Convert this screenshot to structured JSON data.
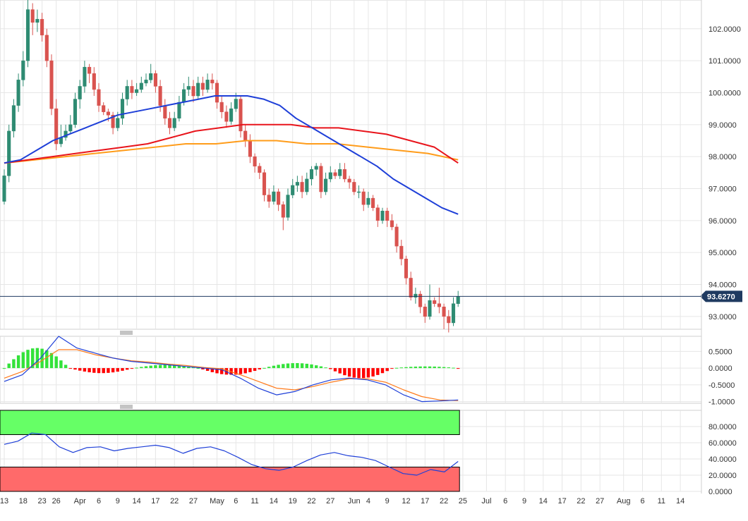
{
  "chart_data": {
    "type": "candlestick",
    "title": "",
    "colors": {
      "up": "#2e8b72",
      "down": "#d9534f",
      "sma_short": "#1e3fd8",
      "sma_mid": "#e8141b",
      "sma_long": "#ff9c1a",
      "macd_line": "#1e3fd8",
      "signal_line": "#ff7a1a",
      "hist_pos": "#33e23a",
      "hist_neg": "#ff0000",
      "rsi_line": "#1e3fd8",
      "overbought_zone": "#66ff66",
      "oversold_zone": "#ff6a6a",
      "price_tag": "#1f3a60",
      "grid": "#e6e6e6"
    },
    "x_axis": {
      "tick_labels": [
        "13",
        "18",
        "23",
        "26",
        "Apr",
        "6",
        "9",
        "14",
        "17",
        "22",
        "27",
        "May",
        "6",
        "11",
        "14",
        "19",
        "22",
        "27",
        "Jun",
        "4",
        "9",
        "12",
        "17",
        "22",
        "25",
        "Jul",
        "6",
        "9",
        "14",
        "17",
        "22",
        "27",
        "Aug",
        "6",
        "11",
        "14"
      ],
      "tick_index": [
        0,
        4,
        8,
        11,
        16,
        20,
        24,
        28,
        32,
        36,
        40,
        45,
        49,
        53,
        57,
        61,
        65,
        69,
        74,
        77,
        81,
        85,
        89,
        93,
        97,
        102,
        106,
        110,
        114,
        118,
        122,
        126,
        131,
        135,
        139,
        143
      ]
    },
    "price_panel": {
      "ylim": [
        92.6,
        102.9
      ],
      "y_ticks": [
        "93.0000",
        "94.0000",
        "95.0000",
        "96.0000",
        "97.0000",
        "98.0000",
        "99.0000",
        "100.0000",
        "101.0000",
        "102.0000"
      ],
      "y_tick_values": [
        93,
        94,
        95,
        96,
        97,
        98,
        99,
        100,
        101,
        102
      ],
      "last_price": 93.627,
      "last_price_label": "93.6270",
      "candles": [
        [
          96.6,
          97.4,
          96.5,
          97.6
        ],
        [
          97.4,
          98.8,
          97.2,
          99.0
        ],
        [
          98.8,
          99.6,
          98.6,
          99.8
        ],
        [
          99.6,
          100.4,
          99.4,
          100.6
        ],
        [
          100.4,
          101.0,
          100.2,
          101.3
        ],
        [
          101.0,
          102.6,
          100.8,
          102.9
        ],
        [
          102.6,
          102.2,
          101.8,
          102.8
        ],
        [
          102.2,
          102.3,
          101.9,
          102.6
        ],
        [
          102.3,
          101.8,
          101.6,
          102.5
        ],
        [
          101.8,
          101.0,
          100.8,
          102.0
        ],
        [
          101.0,
          99.5,
          99.3,
          101.2
        ],
        [
          99.5,
          98.4,
          98.2,
          99.8
        ],
        [
          98.4,
          98.6,
          98.3,
          99.0
        ],
        [
          98.6,
          98.8,
          98.5,
          99.0
        ],
        [
          98.8,
          99.0,
          98.7,
          99.3
        ],
        [
          99.0,
          99.8,
          98.9,
          100.0
        ],
        [
          99.8,
          100.2,
          99.5,
          100.4
        ],
        [
          100.2,
          100.8,
          100.0,
          101.0
        ],
        [
          100.8,
          100.6,
          100.3,
          100.9
        ],
        [
          100.6,
          100.1,
          99.9,
          100.8
        ],
        [
          100.1,
          99.6,
          99.4,
          100.3
        ],
        [
          99.6,
          99.4,
          99.3,
          99.7
        ],
        [
          99.4,
          99.3,
          99.1,
          99.5
        ],
        [
          99.3,
          98.9,
          98.7,
          99.4
        ],
        [
          98.9,
          99.2,
          98.8,
          99.4
        ],
        [
          99.2,
          99.8,
          99.0,
          100.0
        ],
        [
          99.8,
          100.2,
          99.6,
          100.4
        ],
        [
          100.2,
          100.0,
          99.8,
          100.4
        ],
        [
          100.0,
          100.1,
          99.9,
          100.3
        ],
        [
          100.1,
          100.3,
          100.0,
          100.5
        ],
        [
          100.3,
          100.4,
          100.2,
          100.6
        ],
        [
          100.4,
          100.6,
          100.3,
          100.9
        ],
        [
          100.6,
          100.2,
          100.0,
          100.7
        ],
        [
          100.2,
          99.6,
          99.4,
          100.4
        ],
        [
          99.6,
          99.2,
          99.0,
          99.8
        ],
        [
          99.2,
          98.9,
          98.7,
          99.4
        ],
        [
          98.9,
          99.2,
          98.8,
          99.4
        ],
        [
          99.2,
          99.7,
          99.1,
          99.9
        ],
        [
          99.7,
          100.1,
          99.6,
          100.3
        ],
        [
          100.1,
          100.2,
          99.9,
          100.5
        ],
        [
          100.2,
          99.9,
          99.7,
          100.4
        ],
        [
          99.9,
          100.3,
          99.8,
          100.5
        ],
        [
          100.3,
          100.1,
          99.9,
          100.5
        ],
        [
          100.1,
          100.4,
          100.0,
          100.6
        ],
        [
          100.4,
          100.3,
          100.1,
          100.6
        ],
        [
          100.3,
          99.7,
          99.5,
          100.4
        ],
        [
          99.7,
          99.4,
          99.2,
          99.9
        ],
        [
          99.4,
          99.1,
          98.9,
          99.6
        ],
        [
          99.1,
          99.5,
          99.0,
          99.7
        ],
        [
          99.5,
          99.8,
          99.4,
          100.0
        ],
        [
          99.8,
          98.8,
          98.6,
          99.9
        ],
        [
          98.8,
          98.5,
          98.3,
          99.0
        ],
        [
          98.5,
          98.0,
          97.8,
          98.7
        ],
        [
          98.0,
          97.7,
          97.5,
          98.1
        ],
        [
          97.7,
          97.5,
          97.3,
          97.8
        ],
        [
          97.5,
          96.8,
          96.6,
          97.6
        ],
        [
          96.8,
          96.6,
          96.4,
          97.0
        ],
        [
          96.6,
          96.9,
          96.5,
          97.1
        ],
        [
          96.9,
          96.5,
          96.3,
          97.0
        ],
        [
          96.5,
          96.1,
          95.7,
          96.6
        ],
        [
          96.1,
          96.8,
          96.0,
          97.0
        ],
        [
          96.8,
          97.1,
          96.7,
          97.3
        ],
        [
          97.1,
          97.2,
          96.9,
          97.4
        ],
        [
          97.2,
          96.9,
          96.7,
          97.4
        ],
        [
          96.9,
          97.3,
          96.8,
          97.5
        ],
        [
          97.3,
          97.6,
          97.1,
          97.7
        ],
        [
          97.6,
          97.7,
          97.4,
          97.8
        ],
        [
          97.7,
          96.9,
          96.7,
          97.8
        ],
        [
          96.9,
          97.3,
          96.8,
          97.5
        ],
        [
          97.3,
          97.5,
          97.2,
          97.7
        ],
        [
          97.5,
          97.4,
          97.3,
          97.6
        ],
        [
          97.4,
          97.6,
          97.3,
          97.8
        ],
        [
          97.6,
          97.3,
          97.2,
          97.8
        ],
        [
          97.3,
          97.2,
          97.0,
          97.4
        ],
        [
          97.2,
          96.9,
          96.8,
          97.3
        ],
        [
          96.9,
          96.9,
          96.7,
          97.1
        ],
        [
          96.9,
          96.5,
          96.3,
          97.0
        ],
        [
          96.5,
          96.7,
          96.4,
          96.9
        ],
        [
          96.7,
          96.4,
          96.3,
          96.8
        ],
        [
          96.4,
          96.0,
          95.8,
          96.5
        ],
        [
          96.0,
          96.3,
          95.9,
          96.4
        ],
        [
          96.3,
          96.0,
          95.8,
          96.4
        ],
        [
          96.0,
          95.8,
          95.7,
          96.2
        ],
        [
          95.8,
          95.2,
          95.0,
          95.9
        ],
        [
          95.2,
          94.8,
          94.6,
          95.4
        ],
        [
          94.8,
          94.2,
          94.0,
          94.9
        ],
        [
          94.2,
          93.6,
          93.5,
          94.4
        ],
        [
          93.6,
          93.7,
          93.4,
          93.9
        ],
        [
          93.7,
          93.3,
          93.1,
          93.8
        ],
        [
          93.3,
          93.0,
          92.8,
          93.4
        ],
        [
          93.0,
          93.5,
          92.9,
          94.0
        ],
        [
          93.5,
          93.4,
          93.3,
          93.6
        ],
        [
          93.4,
          93.3,
          93.1,
          93.9
        ],
        [
          93.3,
          93.0,
          92.6,
          93.4
        ],
        [
          93.0,
          92.8,
          92.5,
          93.2
        ],
        [
          92.8,
          93.4,
          92.7,
          93.6
        ],
        [
          93.4,
          93.63,
          93.3,
          93.8
        ]
      ],
      "sma_short": [
        97.8,
        97.9,
        98.2,
        98.5,
        98.7,
        98.9,
        99.1,
        99.3,
        99.4,
        99.5,
        99.6,
        99.7,
        99.8,
        99.9,
        99.9,
        99.9,
        99.8,
        99.6,
        99.2,
        98.9,
        98.6,
        98.3,
        98.0,
        97.7,
        97.3,
        97.0,
        96.7,
        96.4,
        96.2
      ],
      "sma_mid": [
        97.8,
        97.9,
        98.0,
        98.1,
        98.2,
        98.3,
        98.4,
        98.6,
        98.8,
        98.9,
        99.0,
        99.0,
        99.0,
        98.9,
        98.9,
        98.8,
        98.7,
        98.5,
        98.3,
        97.8
      ],
      "sma_long": [
        97.8,
        97.9,
        98.0,
        98.1,
        98.2,
        98.3,
        98.4,
        98.4,
        98.5,
        98.5,
        98.4,
        98.4,
        98.3,
        98.2,
        98.1,
        97.9
      ]
    },
    "macd_panel": {
      "ylim": [
        -1.05,
        0.95
      ],
      "y_ticks": [
        "0.5000",
        "0.0000",
        "-0.5000",
        "-1.0000"
      ],
      "y_tick_values": [
        0.5,
        0,
        -0.5,
        -1.0
      ],
      "macd_line": [
        -0.4,
        -0.2,
        0.3,
        0.95,
        0.6,
        0.45,
        0.3,
        0.2,
        0.15,
        0.1,
        0.05,
        0.0,
        -0.05,
        -0.3,
        -0.6,
        -0.8,
        -0.7,
        -0.5,
        -0.35,
        -0.3,
        -0.35,
        -0.5,
        -0.8,
        -1.0,
        -0.98,
        -0.95
      ],
      "signal_line": [
        -0.3,
        -0.1,
        0.2,
        0.55,
        0.55,
        0.4,
        0.3,
        0.22,
        0.18,
        0.12,
        0.08,
        0.02,
        -0.02,
        -0.2,
        -0.4,
        -0.6,
        -0.65,
        -0.55,
        -0.42,
        -0.32,
        -0.32,
        -0.42,
        -0.65,
        -0.85,
        -0.95,
        -0.97
      ],
      "histogram_peaks": [
        0.6,
        -0.15,
        0.1,
        -0.2,
        0.15,
        -0.3,
        0.05
      ]
    },
    "rsi_panel": {
      "ylim": [
        0,
        100
      ],
      "y_ticks": [
        "80.0000",
        "60.0000",
        "40.0000",
        "20.0000",
        "0.0000"
      ],
      "y_tick_values": [
        80,
        60,
        40,
        20,
        0
      ],
      "overbought": 70,
      "oversold": 30,
      "rsi_line": [
        58,
        62,
        72,
        70,
        55,
        48,
        54,
        55,
        50,
        53,
        55,
        57,
        54,
        47,
        53,
        55,
        50,
        42,
        33,
        28,
        26,
        30,
        38,
        45,
        48,
        44,
        42,
        38,
        30,
        22,
        20,
        27,
        24,
        37
      ]
    }
  }
}
